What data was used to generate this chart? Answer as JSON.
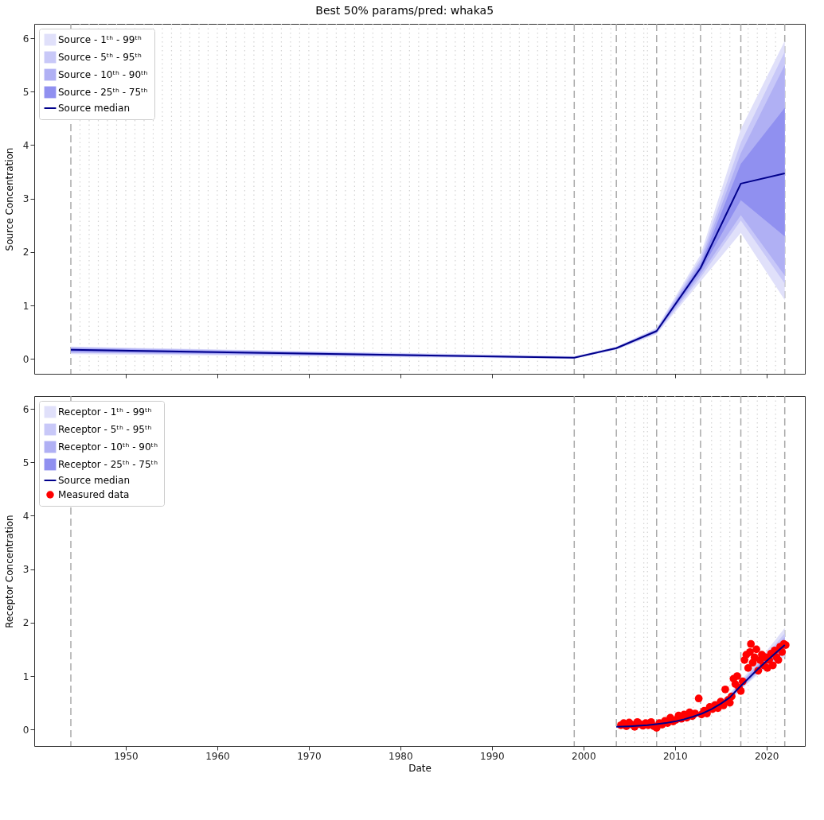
{
  "chart_data": [
    {
      "type": "line",
      "title": "Best 50% params/pred: whaka5",
      "ylabel": "Source Concentration",
      "xlim": [
        1940,
        2024.2
      ],
      "xticks": [
        1950,
        1960,
        1970,
        1980,
        1990,
        2000,
        2010,
        2020
      ],
      "ylim": [
        -0.28,
        6.27
      ],
      "yticks": [
        0,
        1,
        2,
        3,
        4,
        5,
        6
      ],
      "tick_labels": "y",
      "grid": false,
      "legend": "top left",
      "series": [
        {
          "name": "Source - 1ᵗʰ - 99ᵗʰ",
          "type": "area",
          "color": "#e0e0fa",
          "x": [
            1944,
            1999,
            2003.6,
            2008,
            2012.8,
            2017.2,
            2022
          ],
          "values": [
            null,
            null,
            null,
            null,
            null,
            null,
            null
          ],
          "lower": [
            0.09,
            0,
            0.17,
            0.46,
            1.45,
            2.36,
            1.1
          ],
          "upper": [
            0.23,
            0.05,
            0.23,
            0.58,
            1.95,
            4.3,
            5.95
          ]
        },
        {
          "name": "Source - 5ᵗʰ - 95ᵗʰ",
          "type": "area",
          "color": "#c8c8f8",
          "x": [
            1944,
            1999,
            2003.6,
            2008,
            2012.8,
            2017.2,
            2022
          ],
          "values": [
            null,
            null,
            null,
            null,
            null,
            null,
            null
          ],
          "lower": [
            0.11,
            0.01,
            0.18,
            0.48,
            1.52,
            2.59,
            1.41
          ],
          "upper": [
            0.22,
            0.04,
            0.22,
            0.56,
            1.88,
            4.05,
            5.75
          ]
        },
        {
          "name": "Source - 10ᵗʰ - 90ᵗʰ",
          "type": "area",
          "color": "#b0b0f4",
          "x": [
            1944,
            1999,
            2003.6,
            2008,
            2012.8,
            2017.2,
            2022
          ],
          "values": [
            null,
            null,
            null,
            null,
            null,
            null,
            null
          ],
          "lower": [
            0.12,
            0.01,
            0.18,
            0.49,
            1.58,
            2.69,
            1.56
          ],
          "upper": [
            0.21,
            0.03,
            0.22,
            0.55,
            1.82,
            3.85,
            5.5
          ]
        },
        {
          "name": "Source - 25ᵗʰ - 75ᵗʰ",
          "type": "area",
          "color": "#9090f0",
          "x": [
            1944,
            1999,
            2003.6,
            2008,
            2012.8,
            2017.2,
            2022
          ],
          "values": [
            null,
            null,
            null,
            null,
            null,
            null,
            null
          ],
          "lower": [
            0.14,
            0.02,
            0.19,
            0.5,
            1.64,
            2.97,
            2.29
          ],
          "upper": [
            0.19,
            0.03,
            0.21,
            0.54,
            1.76,
            3.65,
            4.7
          ]
        },
        {
          "name": "Source median",
          "type": "line",
          "color": "#00008b",
          "line_style": "solid",
          "x": [
            1944,
            1999,
            2003.6,
            2008,
            2012.8,
            2017.2,
            2022
          ],
          "values": [
            0.17,
            0.02,
            0.2,
            0.52,
            1.7,
            3.28,
            3.47
          ]
        }
      ],
      "ref_lines": [
        {
          "axis": "x",
          "value": 1944,
          "line_style": "dashed",
          "color": "#a9a9a9"
        },
        {
          "axis": "x",
          "value": 1999,
          "line_style": "dashed",
          "color": "#a9a9a9"
        },
        {
          "axis": "x",
          "value": 2003.6,
          "line_style": "dashed",
          "color": "#a9a9a9"
        },
        {
          "axis": "x",
          "value": 2008,
          "line_style": "dashed",
          "color": "#a9a9a9"
        },
        {
          "axis": "x",
          "value": 2012.8,
          "line_style": "dashed",
          "color": "#a9a9a9"
        },
        {
          "axis": "x",
          "value": 2017.2,
          "line_style": "dashed",
          "color": "#a9a9a9"
        },
        {
          "axis": "x",
          "value": 2022,
          "line_style": "dashed",
          "color": "#a9a9a9"
        },
        {
          "axis": "x",
          "value": 1945,
          "line_style": "dotted",
          "color": "#d3d3d3"
        },
        {
          "axis": "x",
          "value": 1946,
          "line_style": "dotted",
          "color": "#d3d3d3"
        },
        {
          "axis": "x",
          "value": 1947,
          "line_style": "dotted",
          "color": "#d3d3d3"
        },
        {
          "axis": "x",
          "value": 1948,
          "line_style": "dotted",
          "color": "#d3d3d3"
        },
        {
          "axis": "x",
          "value": 1949,
          "line_style": "dotted",
          "color": "#d3d3d3"
        },
        {
          "axis": "x",
          "value": 1950,
          "line_style": "dotted",
          "color": "#d3d3d3"
        },
        {
          "axis": "x",
          "value": 1951,
          "line_style": "dotted",
          "color": "#d3d3d3"
        },
        {
          "axis": "x",
          "value": 1952,
          "line_style": "dotted",
          "color": "#d3d3d3"
        },
        {
          "axis": "x",
          "value": 1953,
          "line_style": "dotted",
          "color": "#d3d3d3"
        },
        {
          "axis": "x",
          "value": 1954,
          "line_style": "dotted",
          "color": "#d3d3d3"
        },
        {
          "axis": "x",
          "value": 1955,
          "line_style": "dotted",
          "color": "#d3d3d3"
        },
        {
          "axis": "x",
          "value": 1956,
          "line_style": "dotted",
          "color": "#d3d3d3"
        },
        {
          "axis": "x",
          "value": 1957,
          "line_style": "dotted",
          "color": "#d3d3d3"
        },
        {
          "axis": "x",
          "value": 1958,
          "line_style": "dotted",
          "color": "#d3d3d3"
        },
        {
          "axis": "x",
          "value": 1959,
          "line_style": "dotted",
          "color": "#d3d3d3"
        },
        {
          "axis": "x",
          "value": 1960,
          "line_style": "dotted",
          "color": "#d3d3d3"
        },
        {
          "axis": "x",
          "value": 1961,
          "line_style": "dotted",
          "color": "#d3d3d3"
        },
        {
          "axis": "x",
          "value": 1962,
          "line_style": "dotted",
          "color": "#d3d3d3"
        },
        {
          "axis": "x",
          "value": 1963,
          "line_style": "dotted",
          "color": "#d3d3d3"
        },
        {
          "axis": "x",
          "value": 1964,
          "line_style": "dotted",
          "color": "#d3d3d3"
        },
        {
          "axis": "x",
          "value": 1965,
          "line_style": "dotted",
          "color": "#d3d3d3"
        },
        {
          "axis": "x",
          "value": 1966,
          "line_style": "dotted",
          "color": "#d3d3d3"
        },
        {
          "axis": "x",
          "value": 1967,
          "line_style": "dotted",
          "color": "#d3d3d3"
        },
        {
          "axis": "x",
          "value": 1968,
          "line_style": "dotted",
          "color": "#d3d3d3"
        },
        {
          "axis": "x",
          "value": 1969,
          "line_style": "dotted",
          "color": "#d3d3d3"
        },
        {
          "axis": "x",
          "value": 1970,
          "line_style": "dotted",
          "color": "#d3d3d3"
        },
        {
          "axis": "x",
          "value": 1971,
          "line_style": "dotted",
          "color": "#d3d3d3"
        },
        {
          "axis": "x",
          "value": 1972,
          "line_style": "dotted",
          "color": "#d3d3d3"
        },
        {
          "axis": "x",
          "value": 1973,
          "line_style": "dotted",
          "color": "#d3d3d3"
        },
        {
          "axis": "x",
          "value": 1974,
          "line_style": "dotted",
          "color": "#d3d3d3"
        },
        {
          "axis": "x",
          "value": 1975,
          "line_style": "dotted",
          "color": "#d3d3d3"
        },
        {
          "axis": "x",
          "value": 1976,
          "line_style": "dotted",
          "color": "#d3d3d3"
        },
        {
          "axis": "x",
          "value": 1977,
          "line_style": "dotted",
          "color": "#d3d3d3"
        },
        {
          "axis": "x",
          "value": 1978,
          "line_style": "dotted",
          "color": "#d3d3d3"
        },
        {
          "axis": "x",
          "value": 1979,
          "line_style": "dotted",
          "color": "#d3d3d3"
        },
        {
          "axis": "x",
          "value": 1980,
          "line_style": "dotted",
          "color": "#d3d3d3"
        },
        {
          "axis": "x",
          "value": 1981,
          "line_style": "dotted",
          "color": "#d3d3d3"
        },
        {
          "axis": "x",
          "value": 1982,
          "line_style": "dotted",
          "color": "#d3d3d3"
        },
        {
          "axis": "x",
          "value": 1983,
          "line_style": "dotted",
          "color": "#d3d3d3"
        },
        {
          "axis": "x",
          "value": 1984,
          "line_style": "dotted",
          "color": "#d3d3d3"
        },
        {
          "axis": "x",
          "value": 1985,
          "line_style": "dotted",
          "color": "#d3d3d3"
        },
        {
          "axis": "x",
          "value": 1986,
          "line_style": "dotted",
          "color": "#d3d3d3"
        },
        {
          "axis": "x",
          "value": 1987,
          "line_style": "dotted",
          "color": "#d3d3d3"
        },
        {
          "axis": "x",
          "value": 1988,
          "line_style": "dotted",
          "color": "#d3d3d3"
        },
        {
          "axis": "x",
          "value": 1989,
          "line_style": "dotted",
          "color": "#d3d3d3"
        },
        {
          "axis": "x",
          "value": 1990,
          "line_style": "dotted",
          "color": "#d3d3d3"
        },
        {
          "axis": "x",
          "value": 1991,
          "line_style": "dotted",
          "color": "#d3d3d3"
        },
        {
          "axis": "x",
          "value": 1992,
          "line_style": "dotted",
          "color": "#d3d3d3"
        },
        {
          "axis": "x",
          "value": 1993,
          "line_style": "dotted",
          "color": "#d3d3d3"
        },
        {
          "axis": "x",
          "value": 1994,
          "line_style": "dotted",
          "color": "#d3d3d3"
        },
        {
          "axis": "x",
          "value": 1995,
          "line_style": "dotted",
          "color": "#d3d3d3"
        },
        {
          "axis": "x",
          "value": 1996,
          "line_style": "dotted",
          "color": "#d3d3d3"
        },
        {
          "axis": "x",
          "value": 1997,
          "line_style": "dotted",
          "color": "#d3d3d3"
        },
        {
          "axis": "x",
          "value": 1998,
          "line_style": "dotted",
          "color": "#d3d3d3"
        },
        {
          "axis": "x",
          "value": 2000,
          "line_style": "dotted",
          "color": "#d3d3d3"
        },
        {
          "axis": "x",
          "value": 2001,
          "line_style": "dotted",
          "color": "#d3d3d3"
        },
        {
          "axis": "x",
          "value": 2002,
          "line_style": "dotted",
          "color": "#d3d3d3"
        },
        {
          "axis": "x",
          "value": 2003,
          "line_style": "dotted",
          "color": "#d3d3d3"
        },
        {
          "axis": "x",
          "value": 2004.6,
          "line_style": "dotted",
          "color": "#d3d3d3"
        },
        {
          "axis": "x",
          "value": 2005.6,
          "line_style": "dotted",
          "color": "#d3d3d3"
        },
        {
          "axis": "x",
          "value": 2006.6,
          "line_style": "dotted",
          "color": "#d3d3d3"
        },
        {
          "axis": "x",
          "value": 2007,
          "line_style": "dotted",
          "color": "#d3d3d3"
        },
        {
          "axis": "x",
          "value": 2009,
          "line_style": "dotted",
          "color": "#d3d3d3"
        },
        {
          "axis": "x",
          "value": 2010,
          "line_style": "dotted",
          "color": "#d3d3d3"
        },
        {
          "axis": "x",
          "value": 2011,
          "line_style": "dotted",
          "color": "#d3d3d3"
        },
        {
          "axis": "x",
          "value": 2012,
          "line_style": "dotted",
          "color": "#d3d3d3"
        },
        {
          "axis": "x",
          "value": 2014,
          "line_style": "dotted",
          "color": "#d3d3d3"
        },
        {
          "axis": "x",
          "value": 2015,
          "line_style": "dotted",
          "color": "#d3d3d3"
        },
        {
          "axis": "x",
          "value": 2016,
          "line_style": "dotted",
          "color": "#d3d3d3"
        },
        {
          "axis": "x",
          "value": 2018,
          "line_style": "dotted",
          "color": "#d3d3d3"
        },
        {
          "axis": "x",
          "value": 2019,
          "line_style": "dotted",
          "color": "#d3d3d3"
        },
        {
          "axis": "x",
          "value": 2020,
          "line_style": "dotted",
          "color": "#d3d3d3"
        },
        {
          "axis": "x",
          "value": 2021,
          "line_style": "dotted",
          "color": "#d3d3d3"
        }
      ]
    },
    {
      "type": "line",
      "xlabel": "Date",
      "ylabel": "Receptor Concentration",
      "xlim": [
        1940,
        2024.2
      ],
      "xticks": [
        1950,
        1960,
        1970,
        1980,
        1990,
        2000,
        2010,
        2020
      ],
      "ylim": [
        -0.31,
        6.24
      ],
      "yticks": [
        0,
        1,
        2,
        3,
        4,
        5,
        6
      ],
      "grid": false,
      "legend": "top left",
      "series": [
        {
          "name": "Receptor - 1ᵗʰ - 99ᵗʰ",
          "type": "area",
          "color": "#e0e0fa",
          "x": [
            2003.6,
            2005,
            2006,
            2007,
            2008,
            2009,
            2010,
            2011,
            2012,
            2013,
            2014,
            2015,
            2016,
            2017,
            2018,
            2019,
            2020,
            2021,
            2022
          ],
          "values": [
            null,
            null,
            null,
            null,
            null,
            null,
            null,
            null,
            null,
            null,
            null,
            null,
            null,
            null,
            null,
            null,
            null,
            null,
            null
          ],
          "lower": [
            0.03,
            0.04,
            0.05,
            0.06,
            0.08,
            0.1,
            0.13,
            0.16,
            0.21,
            0.27,
            0.34,
            0.43,
            0.54,
            0.71,
            0.87,
            1.02,
            1.15,
            1.26,
            1.36
          ],
          "upper": [
            0.07,
            0.08,
            0.09,
            0.1,
            0.12,
            0.14,
            0.18,
            0.22,
            0.28,
            0.34,
            0.43,
            0.54,
            0.68,
            0.88,
            1.07,
            1.27,
            1.47,
            1.68,
            1.9
          ]
        },
        {
          "name": "Receptor - 5ᵗʰ - 95ᵗʰ",
          "type": "area",
          "color": "#c8c8f8",
          "x": [
            2003.6,
            2005,
            2006,
            2007,
            2008,
            2009,
            2010,
            2011,
            2012,
            2013,
            2014,
            2015,
            2016,
            2017,
            2018,
            2019,
            2020,
            2021,
            2022
          ],
          "values": [
            null,
            null,
            null,
            null,
            null,
            null,
            null,
            null,
            null,
            null,
            null,
            null,
            null,
            null,
            null,
            null,
            null,
            null,
            null
          ],
          "lower": [
            0.04,
            0.05,
            0.06,
            0.07,
            0.09,
            0.11,
            0.14,
            0.17,
            0.22,
            0.28,
            0.35,
            0.45,
            0.56,
            0.73,
            0.89,
            1.05,
            1.19,
            1.31,
            1.43
          ],
          "upper": [
            0.06,
            0.07,
            0.08,
            0.09,
            0.11,
            0.13,
            0.17,
            0.21,
            0.27,
            0.33,
            0.42,
            0.52,
            0.66,
            0.85,
            1.03,
            1.22,
            1.41,
            1.6,
            1.8
          ]
        },
        {
          "name": "Receptor - 10ᵗʰ - 90ᵗʰ",
          "type": "area",
          "color": "#b0b0f4",
          "x": [
            2003.6,
            2005,
            2006,
            2007,
            2008,
            2009,
            2010,
            2011,
            2012,
            2013,
            2014,
            2015,
            2016,
            2017,
            2018,
            2019,
            2020,
            2021,
            2022
          ],
          "values": [
            null,
            null,
            null,
            null,
            null,
            null,
            null,
            null,
            null,
            null,
            null,
            null,
            null,
            null,
            null,
            null,
            null,
            null,
            null
          ],
          "lower": [
            0.04,
            0.05,
            0.06,
            0.07,
            0.09,
            0.11,
            0.14,
            0.18,
            0.23,
            0.29,
            0.36,
            0.46,
            0.57,
            0.74,
            0.9,
            1.07,
            1.21,
            1.34,
            1.47
          ],
          "upper": [
            0.06,
            0.07,
            0.08,
            0.09,
            0.11,
            0.13,
            0.16,
            0.2,
            0.26,
            0.32,
            0.41,
            0.51,
            0.64,
            0.83,
            1.01,
            1.2,
            1.37,
            1.55,
            1.73
          ]
        },
        {
          "name": "Receptor - 25ᵗʰ - 75ᵗʰ",
          "type": "area",
          "color": "#9090f0",
          "x": [
            2003.6,
            2005,
            2006,
            2007,
            2008,
            2009,
            2010,
            2011,
            2012,
            2013,
            2014,
            2015,
            2016,
            2017,
            2018,
            2019,
            2020,
            2021,
            2022
          ],
          "values": [
            null,
            null,
            null,
            null,
            null,
            null,
            null,
            null,
            null,
            null,
            null,
            null,
            null,
            null,
            null,
            null,
            null,
            null,
            null
          ],
          "lower": [
            0.05,
            0.06,
            0.07,
            0.08,
            0.1,
            0.12,
            0.15,
            0.19,
            0.24,
            0.3,
            0.37,
            0.47,
            0.59,
            0.76,
            0.93,
            1.1,
            1.25,
            1.39,
            1.53
          ],
          "upper": [
            0.05,
            0.06,
            0.07,
            0.08,
            0.1,
            0.12,
            0.15,
            0.19,
            0.25,
            0.31,
            0.39,
            0.5,
            0.62,
            0.8,
            0.98,
            1.16,
            1.33,
            1.49,
            1.65
          ]
        },
        {
          "name": "Source median",
          "type": "line",
          "color": "#00008b",
          "line_style": "solid",
          "x": [
            2003.6,
            2005,
            2006,
            2007,
            2008,
            2009,
            2010,
            2011,
            2012,
            2013,
            2014,
            2015,
            2016,
            2017,
            2018,
            2019,
            2020,
            2021,
            2022
          ],
          "values": [
            0.05,
            0.06,
            0.07,
            0.08,
            0.1,
            0.12,
            0.15,
            0.19,
            0.24,
            0.3,
            0.38,
            0.48,
            0.6,
            0.78,
            0.95,
            1.12,
            1.28,
            1.43,
            1.58
          ]
        },
        {
          "name": "Measured data",
          "type": "scatter",
          "color": "#ff0000",
          "marker": "circle",
          "x": [
            2004.1,
            2004.4,
            2004.7,
            2005.0,
            2005.3,
            2005.6,
            2005.9,
            2006.2,
            2006.5,
            2006.8,
            2007.1,
            2007.4,
            2007.7,
            2008.0,
            2008.3,
            2008.6,
            2008.9,
            2009.2,
            2009.5,
            2009.8,
            2010.1,
            2010.4,
            2010.7,
            2011.0,
            2011.3,
            2011.6,
            2011.9,
            2012.2,
            2012.6,
            2012.9,
            2013.2,
            2013.5,
            2013.8,
            2014.1,
            2014.4,
            2014.7,
            2015.0,
            2015.3,
            2015.5,
            2015.8,
            2016.0,
            2016.2,
            2016.4,
            2016.6,
            2016.8,
            2017.0,
            2017.2,
            2017.4,
            2017.6,
            2017.8,
            2018.0,
            2018.2,
            2018.3,
            2018.5,
            2018.7,
            2018.9,
            2019.1,
            2019.3,
            2019.5,
            2019.7,
            2019.9,
            2020.1,
            2020.3,
            2020.5,
            2020.7,
            2020.9,
            2021.1,
            2021.3,
            2021.5,
            2021.7,
            2021.9,
            2022.1
          ],
          "values": [
            0.08,
            0.12,
            0.06,
            0.13,
            0.09,
            0.05,
            0.14,
            0.1,
            0.07,
            0.12,
            0.08,
            0.14,
            0.06,
            0.03,
            0.12,
            0.09,
            0.16,
            0.12,
            0.22,
            0.15,
            0.18,
            0.26,
            0.2,
            0.28,
            0.22,
            0.32,
            0.25,
            0.3,
            0.58,
            0.28,
            0.35,
            0.3,
            0.42,
            0.38,
            0.46,
            0.4,
            0.52,
            0.45,
            0.75,
            0.55,
            0.5,
            0.62,
            0.95,
            0.85,
            1.0,
            0.78,
            0.72,
            0.9,
            1.3,
            1.4,
            1.15,
            1.45,
            1.6,
            1.25,
            1.35,
            1.5,
            1.1,
            1.3,
            1.4,
            1.2,
            1.35,
            1.15,
            1.3,
            1.42,
            1.2,
            1.48,
            1.35,
            1.3,
            1.55,
            1.45,
            1.6,
            1.58
          ]
        }
      ],
      "ref_lines": [
        {
          "axis": "x",
          "value": 1944,
          "line_style": "dashed",
          "color": "#a9a9a9"
        },
        {
          "axis": "x",
          "value": 1999,
          "line_style": "dashed",
          "color": "#a9a9a9"
        },
        {
          "axis": "x",
          "value": 2003.6,
          "line_style": "dashed",
          "color": "#a9a9a9"
        },
        {
          "axis": "x",
          "value": 2008,
          "line_style": "dashed",
          "color": "#a9a9a9"
        },
        {
          "axis": "x",
          "value": 2012.8,
          "line_style": "dashed",
          "color": "#a9a9a9"
        },
        {
          "axis": "x",
          "value": 2017.2,
          "line_style": "dashed",
          "color": "#a9a9a9"
        },
        {
          "axis": "x",
          "value": 2022,
          "line_style": "dashed",
          "color": "#a9a9a9"
        },
        {
          "axis": "x",
          "value": 2004.6,
          "line_style": "dotted",
          "color": "#d3d3d3"
        },
        {
          "axis": "x",
          "value": 2005.6,
          "line_style": "dotted",
          "color": "#d3d3d3"
        },
        {
          "axis": "x",
          "value": 2006.6,
          "line_style": "dotted",
          "color": "#d3d3d3"
        },
        {
          "axis": "x",
          "value": 2007,
          "line_style": "dotted",
          "color": "#d3d3d3"
        },
        {
          "axis": "x",
          "value": 2009,
          "line_style": "dotted",
          "color": "#d3d3d3"
        },
        {
          "axis": "x",
          "value": 2010,
          "line_style": "dotted",
          "color": "#d3d3d3"
        },
        {
          "axis": "x",
          "value": 2011,
          "line_style": "dotted",
          "color": "#d3d3d3"
        },
        {
          "axis": "x",
          "value": 2012,
          "line_style": "dotted",
          "color": "#d3d3d3"
        },
        {
          "axis": "x",
          "value": 2014,
          "line_style": "dotted",
          "color": "#d3d3d3"
        },
        {
          "axis": "x",
          "value": 2015,
          "line_style": "dotted",
          "color": "#d3d3d3"
        },
        {
          "axis": "x",
          "value": 2016,
          "line_style": "dotted",
          "color": "#d3d3d3"
        },
        {
          "axis": "x",
          "value": 2018,
          "line_style": "dotted",
          "color": "#d3d3d3"
        },
        {
          "axis": "x",
          "value": 2019,
          "line_style": "dotted",
          "color": "#d3d3d3"
        },
        {
          "axis": "x",
          "value": 2020,
          "line_style": "dotted",
          "color": "#d3d3d3"
        },
        {
          "axis": "x",
          "value": 2021,
          "line_style": "dotted",
          "color": "#d3d3d3"
        }
      ]
    }
  ]
}
